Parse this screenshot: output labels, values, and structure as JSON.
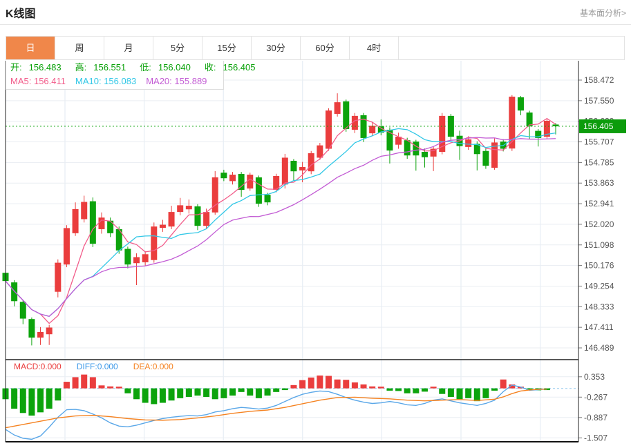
{
  "header": {
    "title": "K线图",
    "link": "基本面分析>"
  },
  "tabs": {
    "items": [
      "日",
      "周",
      "月",
      "5分",
      "15分",
      "30分",
      "60分",
      "4时"
    ],
    "active_index": 0
  },
  "info": {
    "open_label": "开:",
    "open": "156.483",
    "high_label": "高:",
    "high": "156.551",
    "low_label": "低:",
    "low": "156.040",
    "close_label": "收:",
    "close": "156.405",
    "ma5_label": "MA5:",
    "ma5": "156.411",
    "ma10_label": "MA10:",
    "ma10": "156.083",
    "ma20_label": "MA20:",
    "ma20": "155.889"
  },
  "macd_header": {
    "macd_label": "MACD:",
    "macd": "0.000",
    "diff_label": "DIFF:",
    "diff": "0.000",
    "dea_label": "DEA:",
    "dea": "0.000"
  },
  "colors": {
    "up": "#ea3d3d",
    "down": "#0ca30c",
    "ma5": "#f25c8a",
    "ma10": "#30c7e6",
    "ma20": "#c25bd4",
    "diff_line": "#5aa7e8",
    "dea_line": "#f58220",
    "price_line": "#0aa30a",
    "badge_bg": "#0c9c0c",
    "grid_h": "#e9edf2",
    "grid_v": "#e2eaf2",
    "axis_text": "#555",
    "border_dark": "#222",
    "zero_dash": "#aed6f1",
    "tab_active_bg": "#f0874a"
  },
  "chart_data": {
    "type": "candlestick+macd",
    "title": "K线图 日线",
    "price_axis": {
      "min": 146.489,
      "max": 158.472,
      "current": "156.405",
      "ticks": [
        "158.472",
        "157.550",
        "156.629",
        "155.707",
        "154.785",
        "153.863",
        "152.941",
        "152.020",
        "151.098",
        "150.176",
        "149.254",
        "148.333",
        "147.411",
        "146.489"
      ]
    },
    "macd_axis": {
      "min": -1.507,
      "max": 0.353,
      "ticks": [
        "0.353",
        "-0.267",
        "-0.887",
        "-1.507"
      ]
    },
    "slots": 66,
    "ma_periods": [
      5,
      10,
      20
    ],
    "candles": [
      [
        149.85,
        149.95,
        149.3,
        149.48
      ],
      [
        149.42,
        149.52,
        148.35,
        148.58
      ],
      [
        148.55,
        148.62,
        147.55,
        147.8
      ],
      [
        147.78,
        147.85,
        146.6,
        146.95
      ],
      [
        146.95,
        147.42,
        146.62,
        147.2
      ],
      [
        147.1,
        147.52,
        146.62,
        147.4
      ],
      [
        149.0,
        150.45,
        148.75,
        150.3
      ],
      [
        150.22,
        151.98,
        150.1,
        151.85
      ],
      [
        151.62,
        153.0,
        151.5,
        152.7
      ],
      [
        152.25,
        153.3,
        152.1,
        153.02
      ],
      [
        153.05,
        153.22,
        151.0,
        151.15
      ],
      [
        151.8,
        152.55,
        151.6,
        152.32
      ],
      [
        152.18,
        152.32,
        151.45,
        151.62
      ],
      [
        151.8,
        151.92,
        150.7,
        150.85
      ],
      [
        150.92,
        151.02,
        150.05,
        150.22
      ],
      [
        150.28,
        150.72,
        149.3,
        150.55
      ],
      [
        150.32,
        150.82,
        150.15,
        150.68
      ],
      [
        150.42,
        152.1,
        150.3,
        151.92
      ],
      [
        151.86,
        152.22,
        151.68,
        152.0
      ],
      [
        151.92,
        152.85,
        151.8,
        152.57
      ],
      [
        152.57,
        153.2,
        152.42,
        152.87
      ],
      [
        152.69,
        153.13,
        152.5,
        152.85
      ],
      [
        152.82,
        152.92,
        151.76,
        151.95
      ],
      [
        151.95,
        152.72,
        151.8,
        152.57
      ],
      [
        152.55,
        154.4,
        152.45,
        154.12
      ],
      [
        154.33,
        154.46,
        153.95,
        154.08
      ],
      [
        153.95,
        154.36,
        153.8,
        154.24
      ],
      [
        154.27,
        154.36,
        153.25,
        153.56
      ],
      [
        153.62,
        154.33,
        153.52,
        154.24
      ],
      [
        154.12,
        154.2,
        152.8,
        152.94
      ],
      [
        153.34,
        153.43,
        152.87,
        153.0
      ],
      [
        153.56,
        154.28,
        153.45,
        154.18
      ],
      [
        153.8,
        155.17,
        153.62,
        155.0
      ],
      [
        154.86,
        154.94,
        153.96,
        154.39
      ],
      [
        154.43,
        154.81,
        153.9,
        154.58
      ],
      [
        154.39,
        155.3,
        154.26,
        155.2
      ],
      [
        155.0,
        155.66,
        154.9,
        155.55
      ],
      [
        155.4,
        157.21,
        155.31,
        157.11
      ],
      [
        156.96,
        157.88,
        156.84,
        157.48
      ],
      [
        157.52,
        157.6,
        156.16,
        156.28
      ],
      [
        156.25,
        157.0,
        156.1,
        156.87
      ],
      [
        156.9,
        157.0,
        155.7,
        155.88
      ],
      [
        156.09,
        156.6,
        155.96,
        156.43
      ],
      [
        156.4,
        156.71,
        156.0,
        156.12
      ],
      [
        156.25,
        156.36,
        154.74,
        155.32
      ],
      [
        155.58,
        156.12,
        155.4,
        155.94
      ],
      [
        155.78,
        155.89,
        154.95,
        155.1
      ],
      [
        155.72,
        155.8,
        154.42,
        155.1
      ],
      [
        155.26,
        155.41,
        154.56,
        155.02
      ],
      [
        155.05,
        155.5,
        154.4,
        155.4
      ],
      [
        155.26,
        157.0,
        155.15,
        156.87
      ],
      [
        156.87,
        156.96,
        155.8,
        155.94
      ],
      [
        155.98,
        156.21,
        154.9,
        155.52
      ],
      [
        155.48,
        155.96,
        155.35,
        155.82
      ],
      [
        155.62,
        155.73,
        154.43,
        155.16
      ],
      [
        155.3,
        155.41,
        154.5,
        154.64
      ],
      [
        154.55,
        155.86,
        154.46,
        155.68
      ],
      [
        155.72,
        155.83,
        155.28,
        155.4
      ],
      [
        155.41,
        157.8,
        155.3,
        157.73
      ],
      [
        157.7,
        157.76,
        156.9,
        157.11
      ],
      [
        157.02,
        157.1,
        155.82,
        156.4
      ],
      [
        156.2,
        156.28,
        155.5,
        155.88
      ],
      [
        155.94,
        156.74,
        155.85,
        156.65
      ],
      [
        156.483,
        156.551,
        156.04,
        156.405
      ]
    ],
    "macd_hist": [
      -0.33,
      -0.62,
      -0.75,
      -0.83,
      -0.73,
      -0.62,
      -0.37,
      0.2,
      0.34,
      0.42,
      0.34,
      0.09,
      0.06,
      0.05,
      -0.15,
      -0.33,
      -0.44,
      -0.48,
      -0.44,
      -0.37,
      -0.3,
      -0.26,
      -0.22,
      -0.26,
      -0.33,
      -0.3,
      -0.22,
      -0.11,
      -0.22,
      -0.3,
      -0.22,
      -0.11,
      -0.05,
      0.1,
      0.25,
      0.33,
      0.39,
      0.38,
      0.27,
      0.26,
      0.18,
      0.12,
      0.06,
      0.04,
      -0.07,
      -0.08,
      -0.15,
      -0.15,
      -0.1,
      0.05,
      -0.17,
      -0.26,
      -0.33,
      -0.3,
      -0.39,
      -0.3,
      -0.07,
      0.27,
      0.12,
      0.04,
      -0.05,
      -0.06,
      -0.05
    ],
    "diff_line": [
      [
        0,
        -1.25
      ],
      [
        1,
        -1.42
      ],
      [
        2,
        -1.52
      ],
      [
        3,
        -1.55
      ],
      [
        4,
        -1.45
      ],
      [
        5,
        -1.18
      ],
      [
        6,
        -0.88
      ],
      [
        7,
        -0.65
      ],
      [
        8,
        -0.64
      ],
      [
        9,
        -0.68
      ],
      [
        10,
        -0.78
      ],
      [
        11,
        -0.9
      ],
      [
        12,
        -1.05
      ],
      [
        13,
        -1.15
      ],
      [
        14,
        -1.17
      ],
      [
        15,
        -1.12
      ],
      [
        16,
        -1.05
      ],
      [
        17,
        -0.98
      ],
      [
        18,
        -0.92
      ],
      [
        19,
        -0.88
      ],
      [
        20,
        -0.85
      ],
      [
        21,
        -0.83
      ],
      [
        22,
        -0.84
      ],
      [
        23,
        -0.8
      ],
      [
        24,
        -0.72
      ],
      [
        25,
        -0.68
      ],
      [
        26,
        -0.62
      ],
      [
        27,
        -0.58
      ],
      [
        28,
        -0.6
      ],
      [
        29,
        -0.63
      ],
      [
        30,
        -0.6
      ],
      [
        31,
        -0.52
      ],
      [
        32,
        -0.4
      ],
      [
        33,
        -0.28
      ],
      [
        34,
        -0.18
      ],
      [
        35,
        -0.12
      ],
      [
        36,
        -0.08
      ],
      [
        37,
        -0.1
      ],
      [
        38,
        -0.18
      ],
      [
        39,
        -0.28
      ],
      [
        40,
        -0.36
      ],
      [
        41,
        -0.42
      ],
      [
        42,
        -0.46
      ],
      [
        43,
        -0.44
      ],
      [
        44,
        -0.4
      ],
      [
        45,
        -0.44
      ],
      [
        46,
        -0.5
      ],
      [
        47,
        -0.52
      ],
      [
        48,
        -0.46
      ],
      [
        49,
        -0.36
      ],
      [
        50,
        -0.32
      ],
      [
        51,
        -0.38
      ],
      [
        52,
        -0.44
      ],
      [
        53,
        -0.48
      ],
      [
        54,
        -0.52
      ],
      [
        55,
        -0.46
      ],
      [
        56,
        -0.36
      ],
      [
        57,
        -0.1
      ],
      [
        58,
        0.1
      ],
      [
        59,
        0.04
      ],
      [
        60,
        -0.06
      ],
      [
        61,
        -0.04
      ],
      [
        62,
        -0.02
      ]
    ],
    "dea_line": [
      [
        0,
        -1.2
      ],
      [
        2,
        -1.1
      ],
      [
        4,
        -1.0
      ],
      [
        6,
        -0.9
      ],
      [
        8,
        -0.84
      ],
      [
        10,
        -0.82
      ],
      [
        12,
        -0.86
      ],
      [
        14,
        -0.92
      ],
      [
        16,
        -0.96
      ],
      [
        18,
        -0.97
      ],
      [
        20,
        -0.95
      ],
      [
        22,
        -0.9
      ],
      [
        24,
        -0.84
      ],
      [
        26,
        -0.76
      ],
      [
        28,
        -0.7
      ],
      [
        30,
        -0.66
      ],
      [
        32,
        -0.58
      ],
      [
        34,
        -0.47
      ],
      [
        36,
        -0.36
      ],
      [
        38,
        -0.28
      ],
      [
        40,
        -0.27
      ],
      [
        42,
        -0.3
      ],
      [
        44,
        -0.32
      ],
      [
        46,
        -0.36
      ],
      [
        48,
        -0.38
      ],
      [
        50,
        -0.36
      ],
      [
        52,
        -0.34
      ],
      [
        54,
        -0.37
      ],
      [
        56,
        -0.33
      ],
      [
        57,
        -0.26
      ],
      [
        58,
        -0.16
      ],
      [
        59,
        -0.08
      ],
      [
        60,
        -0.05
      ],
      [
        61,
        -0.03
      ],
      [
        62,
        -0.02
      ]
    ]
  }
}
